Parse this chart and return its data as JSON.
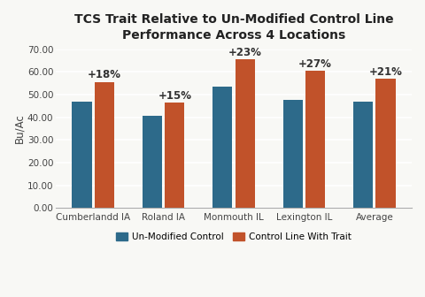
{
  "title_line1": "TCS Trait Relative to Un-Modified Control Line",
  "title_line2": "Performance Across 4 Locations",
  "categories": [
    "Cumberlandd IA",
    "Roland IA",
    "Monmouth IL",
    "Lexington IL",
    "Average"
  ],
  "control_values": [
    47.0,
    40.5,
    53.5,
    47.5,
    47.0
  ],
  "trait_values": [
    55.5,
    46.5,
    65.5,
    60.5,
    57.0
  ],
  "annotations": [
    "+18%",
    "+15%",
    "+23%",
    "+27%",
    "+21%"
  ],
  "control_color": "#2d6a8a",
  "trait_color": "#c1522a",
  "ylabel": "Bu/Ac",
  "ylim": [
    0,
    70
  ],
  "yticks": [
    0,
    10,
    20,
    30,
    40,
    50,
    60,
    70
  ],
  "ytick_labels": [
    "0.00",
    "10.00",
    "20.00",
    "30.00",
    "40.00",
    "50.00",
    "60.00",
    "70.00"
  ],
  "legend_control": "Un-Modified Control",
  "legend_trait": "Control Line With Trait",
  "background_color": "#f8f8f5",
  "bar_width": 0.28,
  "title_fontsize": 10,
  "label_fontsize": 8.5,
  "tick_fontsize": 7.5,
  "annotation_fontsize": 8.5
}
